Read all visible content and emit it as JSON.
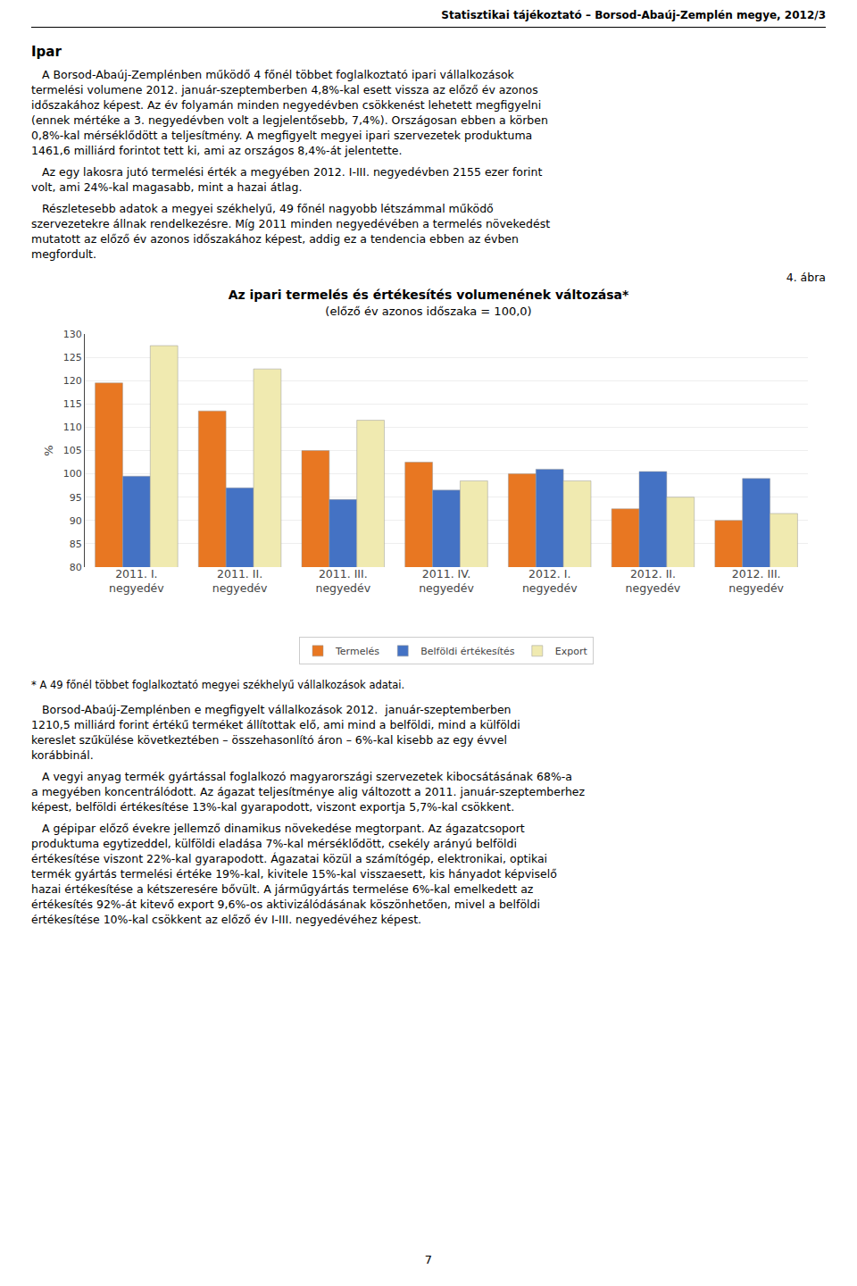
{
  "header": "Statisztikai tájékoztató – Borsod-Abaúj-Zemplén megye, 2012/3",
  "section_title": "Ipar",
  "paragraphs_before": [
    [
      "   A Borsod-Abaúj-Zemplénben működő 4 főnél többet foglalkoztató ipari vállalkozások",
      "termelési volumene 2012. január-szeptemberben 4,8%-kal esett vissza az előző év azonos",
      "időszakához képest. Az év folyamán minden negyedévben csökkenést lehetett megfigyelni",
      "(ennek mértéke a 3. negyedévben volt a legjelentősebb, 7,4%). Országosan ebben a körben",
      "0,8%-kal mérséklődött a teljesítmény. A megfigyelt megyei ipari szervezetek produktuma",
      "1461,6 milliárd forintot tett ki, ami az országos 8,4%-át jelentette."
    ],
    [
      "   Az egy lakosra jutó termelési érték a megyében 2012. I-III. negyedévben 2155 ezer forint",
      "volt, ami 24%-kal magasabb, mint a hazai átlag."
    ],
    [
      "   Részletesebb adatok a megyei székhelyű, 49 főnél nagyobb létszámmal működő",
      "szervezetekre állnak rendelkezésre. Míg 2011 minden negyedévében a termelés növekedést",
      "mutatott az előző év azonos időszakához képest, addig ez a tendencia ebben az évben",
      "megfordult."
    ]
  ],
  "figure_number": "4. ábra",
  "chart_data": {
    "type": "bar",
    "title": "Az ipari termelés és értékesítés volumenének változása*",
    "subtitle": "(előző év azonos időszaka = 100,0)",
    "ylabel": "%",
    "categories": [
      "2011. I.\nnegyedév",
      "2011. II.\nnegyedév",
      "2011. III.\nnegyedév",
      "2011. IV.\nnegyedév",
      "2012. I.\nnegyedév",
      "2012. II.\nnegyedév",
      "2012. III.\nnegyedév"
    ],
    "series": [
      {
        "name": "Termelés",
        "color": "#E87722",
        "values": [
          119.5,
          113.5,
          105.0,
          102.5,
          100.0,
          92.5,
          90.0
        ]
      },
      {
        "name": "Belföldi értékesítés",
        "color": "#4472C4",
        "values": [
          99.5,
          97.0,
          94.5,
          96.5,
          101.0,
          100.5,
          99.0
        ]
      },
      {
        "name": "Export",
        "color": "#F0EAB0",
        "values": [
          127.5,
          122.5,
          111.5,
          98.5,
          98.5,
          95.0,
          91.5
        ]
      }
    ],
    "ylim": [
      80,
      130
    ],
    "yticks": [
      80,
      85,
      90,
      95,
      100,
      105,
      110,
      115,
      120,
      125,
      130
    ],
    "grid": true,
    "legend": "bottom"
  },
  "footnote": "* A 49 főnél többet foglalkoztató megyei székhelyű vállalkozások adatai.",
  "paragraphs_after": [
    [
      "   Borsod-Abaúj-Zemplénben e megfigyelt vállalkozások 2012.  január-szeptemberben",
      "1210,5 milliárd forint értékű terméket állítottak elő, ami mind a belföldi, mind a külföldi",
      "kereslet szűkülése következtében – összehasonlító áron – 6%-kal kisebb az egy évvel",
      "korábbinál."
    ],
    [
      "   A vegyi anyag termék gyártással foglalkozó magyarországi szervezetek kibocsátásának 68%-a",
      "a megyében koncentrálódott. Az ágazat teljesítménye alig változott a 2011. január-szeptemberhez",
      "képest, belföldi értékesítése 13%-kal gyarapodott, viszont exportja 5,7%-kal csökkent."
    ],
    [
      "   A gépipar előző évekre jellemző dinamikus növekedése megtorpant. Az ágazatcsoport",
      "produktuma egytizeddel, külföldi eladása 7%-kal mérséklődött, csekély arányú belföldi",
      "értékesítése viszont 22%-kal gyarapodott. Ágazatai közül a számítógép, elektronikai, optikai",
      "termék gyártás termelési értéke 19%-kal, kivitele 15%-kal visszaesett, kis hányadot képviselő",
      "hazai értékesítése a kétszeresére bővült. A járműgyártás termelése 6%-kal emelkedett az",
      "értékesítés 92%-át kitevő export 9,6%-os aktivizálódásának köszönhetően, mivel a belföldi",
      "értékesítése 10%-kal csökkent az előző év I-III. negyedévéhez képest."
    ]
  ],
  "page_number": "7"
}
